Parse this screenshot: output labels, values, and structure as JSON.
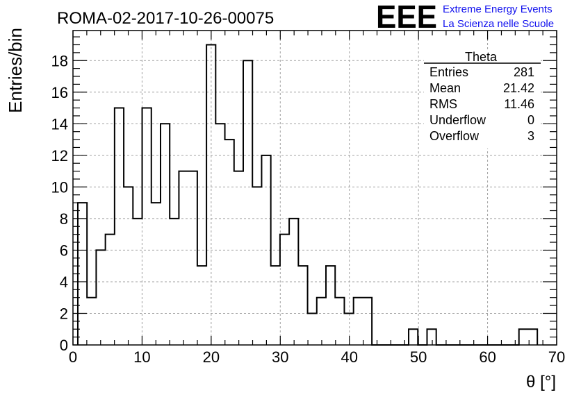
{
  "title": "ROMA-02-2017-10-26-00075",
  "logo": {
    "mark": "EEE",
    "line1": "Extreme Energy Events",
    "line2": "La Scienza nelle Scuole",
    "color": "#1010ee"
  },
  "stats": {
    "name": "Theta",
    "rows": [
      {
        "label": "Entries",
        "value": "281"
      },
      {
        "label": "Mean",
        "value": "21.42"
      },
      {
        "label": "RMS",
        "value": "11.46"
      },
      {
        "label": "Underflow",
        "value": "0"
      },
      {
        "label": "Overflow",
        "value": "3"
      }
    ]
  },
  "chart_data": {
    "type": "histogram",
    "title": "ROMA-02-2017-10-26-00075",
    "xlabel": "θ [°]",
    "ylabel": "Entries/bin",
    "xlim": [
      0,
      70
    ],
    "ylim": [
      0,
      19.9
    ],
    "x_ticks": [
      0,
      10,
      20,
      30,
      40,
      50,
      60,
      70
    ],
    "y_ticks": [
      0,
      2,
      4,
      6,
      8,
      10,
      12,
      14,
      16,
      18
    ],
    "grid": true,
    "bin_start": 0.7,
    "bin_width": 1.33,
    "counts": [
      9,
      3,
      6,
      7,
      15,
      10,
      8,
      15,
      9,
      14,
      8,
      11,
      11,
      5,
      19,
      14,
      13,
      11,
      18,
      10,
      12,
      5,
      7,
      8,
      5,
      2,
      3,
      5,
      3,
      2,
      3,
      3,
      0,
      0,
      0,
      0,
      1,
      0,
      1,
      0,
      0,
      0,
      0,
      0,
      0,
      0,
      0,
      0,
      1,
      1
    ],
    "line_color": "#000000"
  }
}
